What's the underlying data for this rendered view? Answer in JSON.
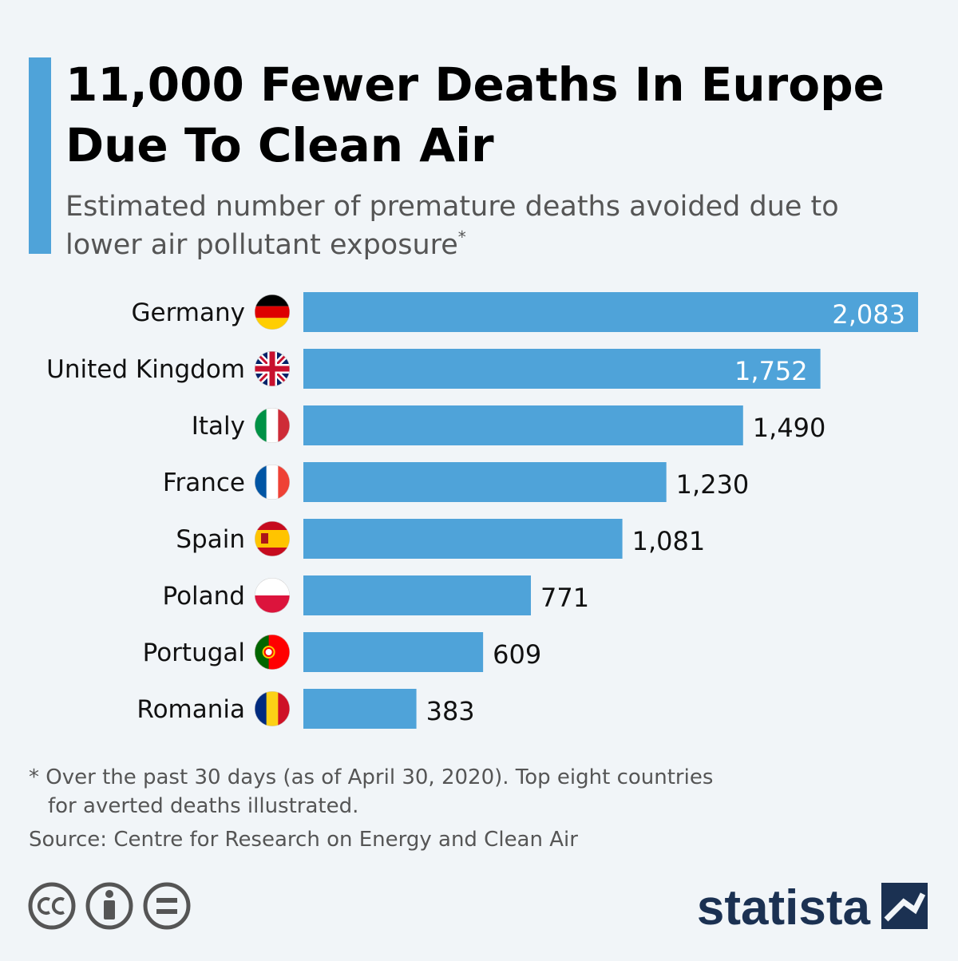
{
  "chart_data": {
    "type": "bar",
    "orientation": "horizontal",
    "title": [
      "11,000 Fewer Deaths In Europe",
      "Due To Clean Air"
    ],
    "subtitle": [
      "Estimated number of premature deaths avoided due to",
      "lower air pollutant exposure"
    ],
    "subtitle_marker": "*",
    "categories": [
      "Germany",
      "United Kingdom",
      "Italy",
      "France",
      "Spain",
      "Poland",
      "Portugal",
      "Romania"
    ],
    "values": [
      2083,
      1752,
      1490,
      1230,
      1081,
      771,
      609,
      383
    ],
    "value_labels": [
      "2,083",
      "1,752",
      "1,490",
      "1,230",
      "1,081",
      "771",
      "609",
      "383"
    ],
    "color": "#4fa3d9",
    "xlim": [
      0,
      2083
    ],
    "footnote": [
      "* Over the past 30 days (as of April 30, 2020). Top eight countries",
      "for averted deaths illustrated."
    ],
    "source": "Source: Centre for Research on Energy and Clean Air",
    "brand": "statista"
  }
}
